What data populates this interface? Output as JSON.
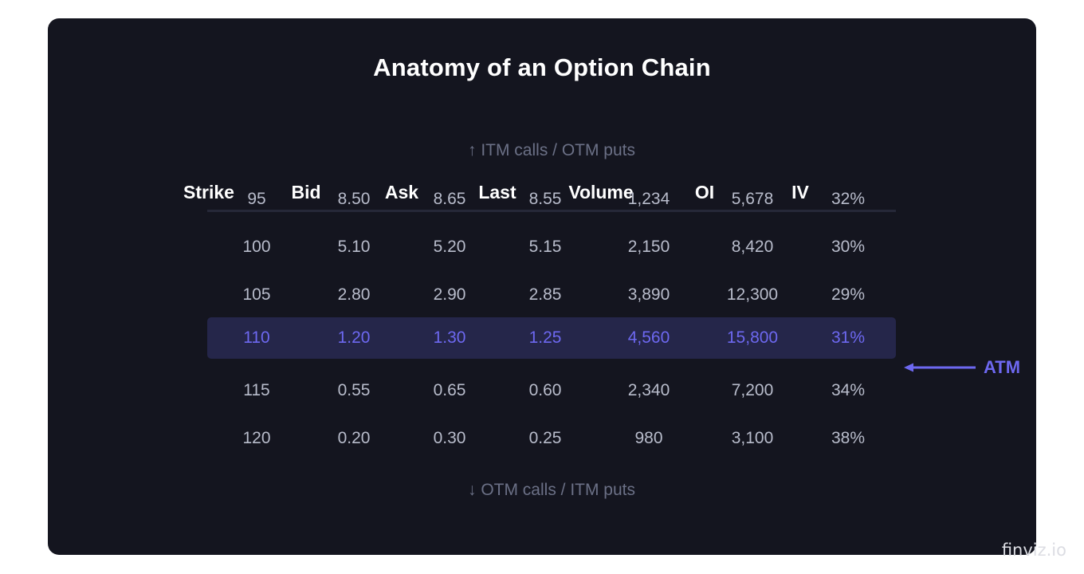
{
  "title": "Anatomy of an Option Chain",
  "hint_top": "↑ ITM calls / OTM puts",
  "hint_bottom": "↓ OTM calls / ITM puts",
  "columns": [
    "Strike",
    "Bid",
    "Ask",
    "Last",
    "Volume",
    "OI",
    "IV"
  ],
  "rows": [
    [
      "95",
      "8.50",
      "8.65",
      "8.55",
      "1,234",
      "5,678",
      "32%"
    ],
    [
      "100",
      "5.10",
      "5.20",
      "5.15",
      "2,150",
      "8,420",
      "30%"
    ],
    [
      "105",
      "2.80",
      "2.90",
      "2.85",
      "3,890",
      "12,300",
      "29%"
    ],
    [
      "110",
      "1.20",
      "1.30",
      "1.25",
      "4,560",
      "15,800",
      "31%"
    ],
    [
      "115",
      "0.55",
      "0.65",
      "0.60",
      "2,340",
      "7,200",
      "34%"
    ],
    [
      "120",
      "0.20",
      "0.30",
      "0.25",
      "980",
      "3,100",
      "38%"
    ]
  ],
  "atm_label": "ATM",
  "watermark": "finviz.io",
  "colors": {
    "background": "#14151f",
    "accent": "#6d68f0",
    "atm_row": "#25264a",
    "text": "#b8bccb",
    "muted": "#6b7086"
  }
}
